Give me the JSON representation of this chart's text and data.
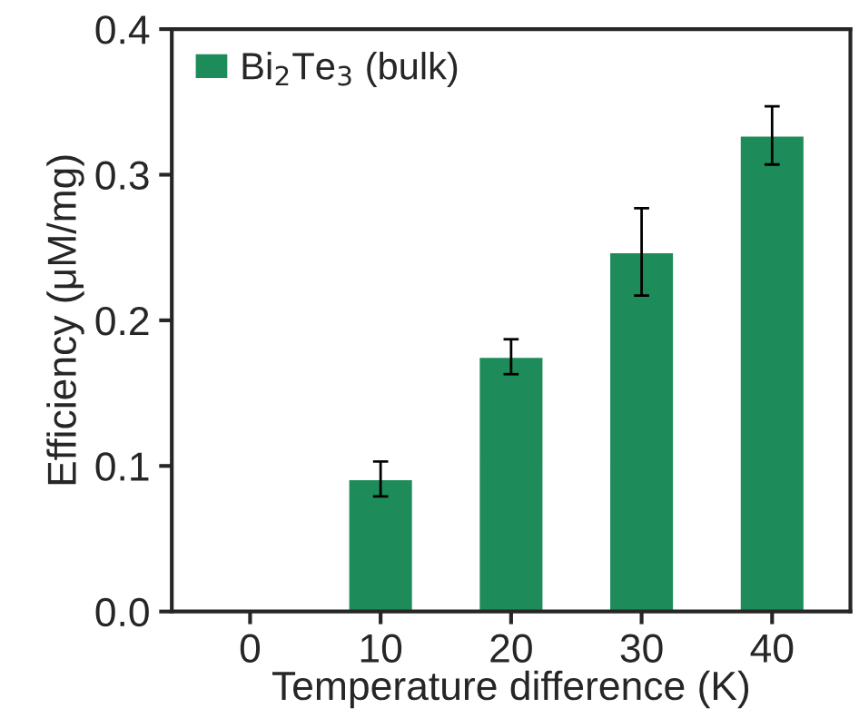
{
  "chart_data": {
    "type": "bar",
    "xlabel": "Temperature difference (K)",
    "ylabel": "Efficiency (μM/mg)",
    "categories": [
      "0",
      "10",
      "20",
      "30",
      "40"
    ],
    "series": [
      {
        "name": "Bi$_{2}$Te$_{3}$ (bulk)",
        "color": "#1e8c5a",
        "values": [
          null,
          0.091,
          0.175,
          0.247,
          0.327
        ],
        "errors": [
          null,
          0.012,
          0.012,
          0.03,
          0.02
        ]
      }
    ],
    "ylim": [
      0.0,
      0.4
    ],
    "yticks": [
      {
        "value": 0.0,
        "label": "0.0"
      },
      0.1,
      0.2,
      0.3,
      0.4
    ],
    "grid": false,
    "legend": "top left"
  }
}
